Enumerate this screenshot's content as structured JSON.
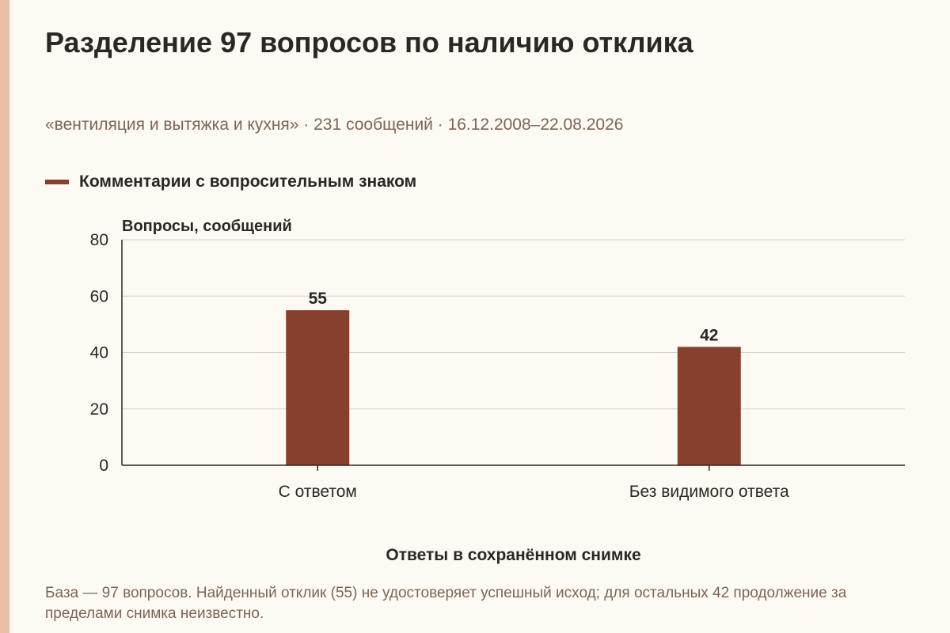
{
  "chart_data": {
    "type": "bar",
    "title": "Разделение 97 вопросов по наличию отклика",
    "subtitle": "«вентиляция и вытяжка и кухня» · 231 сообщений · 16.12.2008–22.08.2026",
    "categories": [
      "С ответом",
      "Без видимого ответа"
    ],
    "series": [
      {
        "name": "Комментарии с вопросительным знаком",
        "values": [
          55,
          42
        ]
      }
    ],
    "ylabel": "Вопросы, сообщений",
    "xlabel": "Ответы в сохранённом снимке",
    "ylim": [
      0,
      80
    ],
    "yticks": [
      0,
      20,
      40,
      60,
      80
    ],
    "grid": true,
    "legend_position": "top-left",
    "data_labels": true
  },
  "footnote": "База — 97 вопросов. Найденный отклик (55) не удостоверяет успешный исход; для остальных 42 продолжение за пределами снимка неизвестно.",
  "colors": {
    "bar": "#873f2e",
    "accent_strip": "#ebbfa4",
    "background": "#fdfaf3",
    "grid": "#d6d2cc",
    "axis": "#2b2722",
    "muted_text": "#7b6556"
  }
}
